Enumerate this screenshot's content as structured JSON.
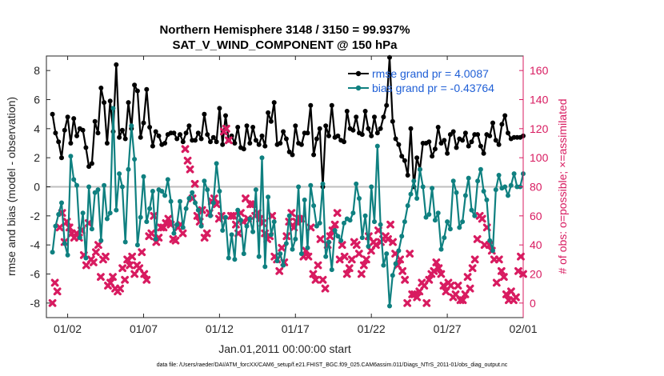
{
  "chart_data": {
    "type": "line",
    "title": "Northern Hemisphere 3148 / 3150 = 99.937%",
    "subtitle": "SAT_V_WIND_COMPONENT @ 150 hPa",
    "xlabel": "Jan.01,2011 00:00:00 start",
    "ylabel_left": "rmse and bias (model - observation)",
    "ylabel_right": "# of obs: o=possible; ×=assimilated",
    "footer": "data file: /Users/raeder/DAI/ATM_forcXX/CAM6_setup/f.e21.FHIST_BGC.f09_025.CAM6assim.011/Diags_NTrS_2011-01/obs_diag_output.nc",
    "xlim": [
      0.6,
      32.0
    ],
    "ylim_left": [
      -9,
      9
    ],
    "ylim_right": [
      -10,
      170
    ],
    "x_ticks": [
      {
        "v": 2,
        "label": "01/02"
      },
      {
        "v": 7,
        "label": "01/07"
      },
      {
        "v": 12,
        "label": "01/12"
      },
      {
        "v": 17,
        "label": "01/17"
      },
      {
        "v": 22,
        "label": "01/22"
      },
      {
        "v": 27,
        "label": "01/27"
      },
      {
        "v": 32,
        "label": "02/01"
      }
    ],
    "y_ticks_left": [
      "-8",
      "-6",
      "-4",
      "-2",
      "0",
      "2",
      "4",
      "6",
      "8"
    ],
    "y_ticks_right": [
      "0",
      "20",
      "40",
      "60",
      "80",
      "100",
      "120",
      "140",
      "160"
    ],
    "colors": {
      "rmse": "#000000",
      "bias": "#0f8080",
      "obs": "#d81b60",
      "zero": "#bfbfbf"
    },
    "series": [
      {
        "name": "rmse grand pr = 4.0087",
        "values": [
          5.0,
          3.7,
          3.1,
          2.0,
          3.9,
          4.8,
          3.0,
          4.7,
          3.5,
          4.0,
          3.9,
          2.7,
          1.4,
          1.6,
          4.5,
          3.7,
          6.8,
          5.8,
          3.0,
          5.9,
          3.8,
          8.4,
          3.4,
          3.9,
          3.3,
          5.8,
          4.0,
          7.0,
          6.6,
          3.4,
          4.4,
          6.7,
          4.1,
          2.8,
          3.8,
          3.5,
          2.9,
          3.0,
          3.6,
          3.7,
          3.7,
          3.3,
          3.6,
          3.1,
          3.7,
          4.2,
          3.2,
          3.2,
          3.7,
          3.3,
          5.0,
          3.6,
          3.1,
          3.4,
          3.1,
          5.4,
          2.9,
          4.9,
          3.2,
          3.5,
          3.0,
          4.1,
          2.7,
          2.6,
          4.2,
          3.0,
          4.1,
          3.2,
          2.9,
          3.5,
          2.8,
          5.1,
          4.5,
          5.8,
          2.9,
          3.0,
          3.8,
          3.3,
          2.4,
          2.2,
          4.2,
          3.0,
          2.9,
          3.7,
          3.7,
          5.6,
          2.2,
          3.3,
          4.0,
          0.0,
          4.2,
          3.5,
          5.6,
          3.4,
          3.5,
          3.2,
          3.1,
          5.2,
          4.0,
          3.9,
          4.8,
          3.7,
          3.6,
          5.2,
          4.0,
          3.5,
          4.8,
          3.7,
          4.0,
          4.8,
          5.6,
          8.9,
          4.5,
          3.3,
          2.9,
          2.1,
          1.8,
          0.8,
          4.0,
          0.0,
          2.0,
          1.2,
          3.0,
          3.0,
          3.1,
          2.1,
          2.6,
          4.1,
          3.0,
          3.2,
          2.3,
          3.6,
          3.8,
          2.7,
          3.3,
          3.2,
          3.7,
          2.8,
          3.1,
          3.6,
          3.6,
          2.8,
          2.3,
          3.6,
          3.5,
          4.4,
          3.2,
          2.9,
          4.3,
          4.9,
          3.7,
          3.3,
          3.4,
          3.4,
          3.4,
          3.5
        ]
      },
      {
        "name": "bias grand pr = -0.43764",
        "values": [
          -4.5,
          -2.7,
          -1.9,
          -1.1,
          -3.9,
          -4.7,
          2.1,
          0.5,
          0.1,
          -3.5,
          -1.8,
          -4.9,
          0.0,
          -2.9,
          -0.4,
          -0.2,
          -3.7,
          0.1,
          -2.2,
          -1.8,
          5.4,
          -1.6,
          0.9,
          0.0,
          -3.8,
          1.2,
          4.2,
          1.9,
          -4.0,
          -2.1,
          0.7,
          -2.4,
          -1.5,
          -0.3,
          -3.6,
          -0.2,
          -0.3,
          -0.6,
          0.5,
          -1.0,
          -3.2,
          -2.6,
          -1.0,
          -2.8,
          -1.5,
          -0.8,
          -0.4,
          -1.1,
          -1.6,
          -2.7,
          0.4,
          -0.2,
          -2.0,
          -1.1,
          1.6,
          -0.3,
          -3.0,
          -2.1,
          -4.9,
          -3.3,
          -5.0,
          -1.6,
          -2.3,
          -4.6,
          -2.7,
          -2.2,
          -3.1,
          -0.2,
          -4.8,
          2.0,
          -5.5,
          -0.7,
          -3.3,
          -2.4,
          -5.1,
          -4.6,
          -5.4,
          -3.9,
          -2.0,
          -4.3,
          -3.6,
          0.0,
          -4.6,
          -0.9,
          -4.2,
          0.1,
          -1.3,
          -2.7,
          -2.5,
          0.2,
          -4.8,
          -3.8,
          -5.7,
          -3.0,
          -3.4,
          -3.7,
          -2.5,
          -2.2,
          -2.3,
          -1.8,
          0.2,
          -0.8,
          -3.5,
          -2.0,
          -4.1,
          0.0,
          -2.4,
          2.8,
          -2.6,
          -5.4,
          -4.6,
          -8.2,
          -6.1,
          -5.3,
          -4.4,
          -3.4,
          -2.4,
          -1.3,
          -0.5,
          0.4,
          -0.8,
          1.2,
          0.0,
          -2.1,
          -1.9,
          -0.1,
          -2.3,
          -1.8,
          -4.3,
          -3.5,
          -2.4,
          -2.9,
          0.4,
          -0.4,
          -2.8,
          -2.4,
          -0.6,
          0.6,
          -1.6,
          -2.0,
          0.4,
          1.2,
          -0.3,
          -0.9,
          -3.7,
          -4.4,
          -0.2,
          0.8,
          -0.1,
          0.0,
          -0.6,
          0.1,
          0.9,
          0.0,
          0.0,
          0.9
        ]
      },
      {
        "name": "assimilated",
        "values": [
          0,
          14,
          8,
          52,
          62,
          42,
          56,
          52,
          48,
          45,
          48,
          45,
          50,
          33,
          26,
          55,
          30,
          28,
          35,
          40,
          18,
          30,
          32,
          12,
          14,
          18,
          10,
          8,
          10,
          24,
          16,
          30,
          26,
          32,
          20,
          26,
          24,
          35,
          20,
          16,
          46,
          48,
          60,
          42,
          45,
          52,
          52,
          55,
          58,
          54,
          44,
          43,
          52,
          54,
          48,
          106,
          98,
          92,
          72,
          82,
          60,
          56,
          64,
          45,
          48,
          62,
          70,
          72,
          68,
          58,
          60,
          118,
          120,
          112,
          60,
          60,
          54,
          48,
          62,
          56,
          72,
          58,
          68,
          68,
          60,
          62,
          58,
          55,
          48,
          44,
          46,
          60,
          32,
          30,
          22,
          38,
          28,
          46,
          56,
          62,
          52,
          56,
          58,
          58,
          32,
          36,
          32,
          52,
          20,
          16,
          26,
          44,
          16,
          10,
          40,
          46,
          50,
          54,
          62,
          30,
          40,
          32,
          20,
          24,
          30,
          42,
          40,
          34,
          20,
          26,
          30,
          46,
          36,
          42,
          40,
          50,
          42,
          44,
          46,
          44,
          54,
          42,
          34,
          26,
          30,
          22,
          16,
          0,
          34,
          6,
          6,
          4,
          8,
          14,
          12,
          0,
          16,
          20,
          22,
          28,
          24,
          20,
          12,
          8,
          14,
          12,
          4,
          6,
          12,
          2,
          2,
          6,
          18,
          10,
          24,
          30,
          44,
          60,
          58,
          40,
          52,
          40,
          36,
          30,
          14,
          30,
          22,
          18,
          6,
          2,
          8,
          2,
          4,
          22,
          32,
          20
        ]
      }
    ]
  }
}
